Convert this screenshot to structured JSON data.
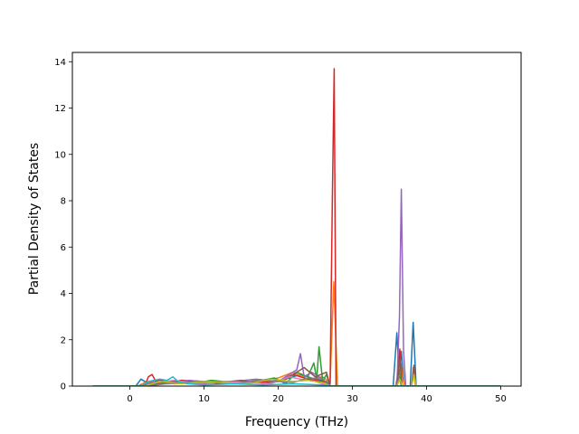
{
  "chart_data": {
    "type": "line",
    "title": "",
    "xlabel": "Frequency (THz)",
    "ylabel": "Partial Density of States",
    "xlim": [
      -7.75,
      52.75
    ],
    "ylim": [
      0,
      14.4
    ],
    "xticks": [
      0,
      10,
      20,
      30,
      40,
      50
    ],
    "yticks": [
      0,
      2,
      4,
      6,
      8,
      10,
      12,
      14
    ],
    "xtick_labels": [
      "0",
      "10",
      "20",
      "30",
      "40",
      "50"
    ],
    "ytick_labels": [
      "0",
      "2",
      "4",
      "6",
      "8",
      "10",
      "12",
      "14"
    ],
    "grid": false,
    "legend": "none",
    "series": [
      {
        "color": "#1f77b4",
        "points": [
          [
            -5,
            0
          ],
          [
            0.8,
            0
          ],
          [
            1.5,
            0.3
          ],
          [
            2.5,
            0.1
          ],
          [
            4,
            0.25
          ],
          [
            6,
            0.15
          ],
          [
            8,
            0.2
          ],
          [
            10,
            0.1
          ],
          [
            13,
            0.2
          ],
          [
            16,
            0.15
          ],
          [
            19,
            0.2
          ],
          [
            21,
            0.3
          ],
          [
            23,
            0.5
          ],
          [
            25,
            0.3
          ],
          [
            26.5,
            0.2
          ],
          [
            27,
            0
          ],
          [
            35.5,
            0
          ],
          [
            36,
            2.3
          ],
          [
            36.3,
            0.5
          ],
          [
            36.6,
            1.5
          ],
          [
            37,
            0
          ],
          [
            37.8,
            0
          ],
          [
            38.2,
            2.75
          ],
          [
            38.6,
            0
          ],
          [
            50,
            0
          ]
        ]
      },
      {
        "color": "#ff7f0e",
        "points": [
          [
            -5,
            0
          ],
          [
            1,
            0
          ],
          [
            2,
            0.15
          ],
          [
            4,
            0.2
          ],
          [
            6,
            0.1
          ],
          [
            9,
            0.15
          ],
          [
            12,
            0.2
          ],
          [
            15,
            0.1
          ],
          [
            18,
            0.25
          ],
          [
            20,
            0.35
          ],
          [
            22,
            0.6
          ],
          [
            24,
            0.3
          ],
          [
            26,
            0.4
          ],
          [
            27,
            0.15
          ],
          [
            27.5,
            4.5
          ],
          [
            28,
            0
          ],
          [
            35.8,
            0
          ],
          [
            36.2,
            0.6
          ],
          [
            36.5,
            1.0
          ],
          [
            37,
            0
          ],
          [
            38,
            0
          ],
          [
            38.2,
            0.8
          ],
          [
            38.5,
            0
          ],
          [
            50,
            0
          ]
        ]
      },
      {
        "color": "#2ca02c",
        "points": [
          [
            -5,
            0
          ],
          [
            1,
            0
          ],
          [
            3,
            0.1
          ],
          [
            5,
            0.2
          ],
          [
            8,
            0.1
          ],
          [
            11,
            0.25
          ],
          [
            14,
            0.15
          ],
          [
            17,
            0.2
          ],
          [
            19.5,
            0.35
          ],
          [
            21,
            0.1
          ],
          [
            22.5,
            0.6
          ],
          [
            24,
            0.4
          ],
          [
            24.8,
            1.0
          ],
          [
            25.2,
            0.3
          ],
          [
            25.5,
            1.7
          ],
          [
            26,
            0.2
          ],
          [
            26.5,
            0.5
          ],
          [
            27,
            0
          ],
          [
            36,
            0
          ],
          [
            36.3,
            0.7
          ],
          [
            36.6,
            0
          ],
          [
            50,
            0
          ]
        ]
      },
      {
        "color": "#d62728",
        "points": [
          [
            -5,
            0
          ],
          [
            2,
            0
          ],
          [
            2.5,
            0.4
          ],
          [
            3,
            0.5
          ],
          [
            3.5,
            0.2
          ],
          [
            4,
            0.3
          ],
          [
            5,
            0.15
          ],
          [
            7,
            0.25
          ],
          [
            10,
            0.2
          ],
          [
            12,
            0.1
          ],
          [
            14,
            0.2
          ],
          [
            17,
            0.15
          ],
          [
            20,
            0.2
          ],
          [
            22,
            0.5
          ],
          [
            24,
            0.3
          ],
          [
            26,
            0.2
          ],
          [
            27,
            0.1
          ],
          [
            27.3,
            8
          ],
          [
            27.55,
            13.7
          ],
          [
            27.8,
            0
          ],
          [
            36,
            0
          ],
          [
            36.4,
            1.6
          ],
          [
            36.7,
            0
          ],
          [
            50,
            0
          ]
        ]
      },
      {
        "color": "#9467bd",
        "points": [
          [
            -5,
            0
          ],
          [
            2,
            0
          ],
          [
            3,
            0.2
          ],
          [
            5,
            0.1
          ],
          [
            8,
            0.25
          ],
          [
            11,
            0.15
          ],
          [
            14,
            0.2
          ],
          [
            17,
            0.3
          ],
          [
            20,
            0.2
          ],
          [
            22.5,
            0.7
          ],
          [
            23,
            1.4
          ],
          [
            23.5,
            0.4
          ],
          [
            24.5,
            0.6
          ],
          [
            26,
            0.3
          ],
          [
            27,
            0
          ],
          [
            36,
            0
          ],
          [
            36.35,
            3
          ],
          [
            36.6,
            8.5
          ],
          [
            36.9,
            1.5
          ],
          [
            37.2,
            0
          ],
          [
            50,
            0
          ]
        ]
      },
      {
        "color": "#8c564b",
        "points": [
          [
            -5,
            0
          ],
          [
            2,
            0
          ],
          [
            4,
            0.1
          ],
          [
            6,
            0.2
          ],
          [
            9,
            0.1
          ],
          [
            12,
            0.15
          ],
          [
            15,
            0.25
          ],
          [
            18,
            0.1
          ],
          [
            21,
            0.3
          ],
          [
            23.5,
            0.8
          ],
          [
            25,
            0.4
          ],
          [
            26.5,
            0.6
          ],
          [
            27,
            0
          ],
          [
            36,
            0
          ],
          [
            36.4,
            1.2
          ],
          [
            36.7,
            0
          ],
          [
            38,
            0
          ],
          [
            38.3,
            0.9
          ],
          [
            38.6,
            0
          ],
          [
            50,
            0
          ]
        ]
      },
      {
        "color": "#e377c2",
        "points": [
          [
            -5,
            0
          ],
          [
            2,
            0
          ],
          [
            3.5,
            0.15
          ],
          [
            6,
            0.25
          ],
          [
            9,
            0.1
          ],
          [
            13,
            0.2
          ],
          [
            16,
            0.15
          ],
          [
            19,
            0.1
          ],
          [
            21.5,
            0.4
          ],
          [
            23,
            0.3
          ],
          [
            25,
            0.2
          ],
          [
            27,
            0
          ],
          [
            50,
            0
          ]
        ]
      },
      {
        "color": "#7f7f7f",
        "points": [
          [
            -5,
            0
          ],
          [
            2,
            0
          ],
          [
            5,
            0.1
          ],
          [
            8,
            0.15
          ],
          [
            11,
            0.2
          ],
          [
            14,
            0.1
          ],
          [
            17,
            0.25
          ],
          [
            20,
            0.2
          ],
          [
            22,
            0.15
          ],
          [
            24,
            0.35
          ],
          [
            26,
            0.3
          ],
          [
            27,
            0
          ],
          [
            36,
            0
          ],
          [
            36.3,
            0.4
          ],
          [
            36.6,
            0
          ],
          [
            50,
            0
          ]
        ]
      },
      {
        "color": "#bcbd22",
        "points": [
          [
            -5,
            0
          ],
          [
            2,
            0
          ],
          [
            4,
            0.2
          ],
          [
            7,
            0.1
          ],
          [
            10,
            0.2
          ],
          [
            13,
            0.15
          ],
          [
            16,
            0.1
          ],
          [
            19,
            0.3
          ],
          [
            22,
            0.2
          ],
          [
            24,
            0.25
          ],
          [
            26,
            0.15
          ],
          [
            27,
            0
          ],
          [
            36,
            0
          ],
          [
            36.4,
            0.3
          ],
          [
            36.8,
            0
          ],
          [
            38,
            0
          ],
          [
            38.3,
            0.5
          ],
          [
            38.6,
            0
          ],
          [
            50,
            0
          ]
        ]
      },
      {
        "color": "#17becf",
        "points": [
          [
            -5,
            0
          ],
          [
            1.5,
            0
          ],
          [
            2.5,
            0.2
          ],
          [
            4,
            0.3
          ],
          [
            5,
            0.25
          ],
          [
            5.8,
            0.4
          ],
          [
            6.5,
            0.2
          ],
          [
            8,
            0.1
          ],
          [
            10,
            0.05
          ],
          [
            14,
            0.1
          ],
          [
            18,
            0.05
          ],
          [
            22,
            0.1
          ],
          [
            26,
            0.05
          ],
          [
            27,
            0
          ],
          [
            50,
            0
          ]
        ]
      }
    ]
  }
}
